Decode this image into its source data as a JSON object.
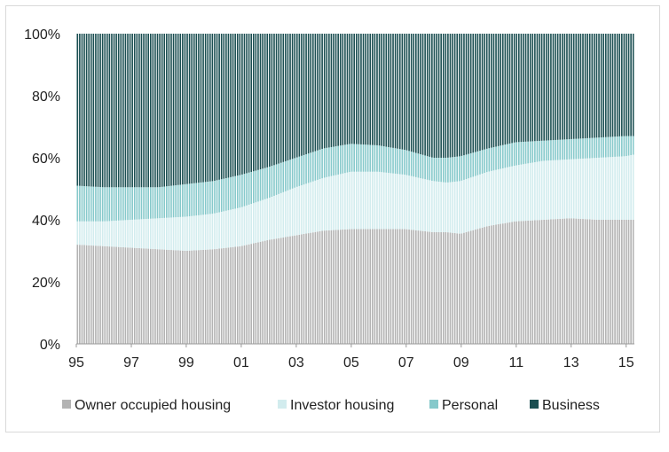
{
  "chart_data": {
    "type": "bar",
    "stacked": true,
    "percent_stacked": true,
    "x_tick_labels": [
      "95",
      "97",
      "99",
      "01",
      "03",
      "05",
      "07",
      "09",
      "11",
      "13",
      "15"
    ],
    "x_tick_values": [
      1995,
      1997,
      1999,
      2001,
      2003,
      2005,
      2007,
      2009,
      2011,
      2013,
      2015
    ],
    "x_range": [
      1995,
      2015.3
    ],
    "y_tick_labels": [
      "0%",
      "20%",
      "40%",
      "60%",
      "80%",
      "100%"
    ],
    "ylim": [
      0,
      100
    ],
    "grid": false,
    "legend_position": "bottom",
    "colors": {
      "Owner occupied housing": "#b3b3b3",
      "Investor housing": "#d2ecee",
      "Personal": "#86c9cb",
      "Business": "#1b4f52"
    },
    "x": [
      1995.0,
      1996.0,
      1997.0,
      1998.0,
      1999.0,
      2000.0,
      2001.0,
      2002.0,
      2003.0,
      2004.0,
      2005.0,
      2006.0,
      2007.0,
      2008.0,
      2008.5,
      2009.0,
      2010.0,
      2011.0,
      2012.0,
      2013.0,
      2014.0,
      2015.0,
      2015.3
    ],
    "series": [
      {
        "name": "Owner occupied housing",
        "values": [
          32,
          31.5,
          31,
          30.5,
          30,
          30.5,
          31.5,
          33.5,
          35,
          36.5,
          37,
          37,
          37,
          36,
          36,
          35.5,
          38,
          39.5,
          40,
          40.5,
          40,
          40,
          40
        ]
      },
      {
        "name": "Investor housing",
        "values": [
          7.5,
          8,
          9,
          10,
          11,
          11.5,
          12.5,
          13.5,
          15.5,
          17,
          18.5,
          18.5,
          17.5,
          16.5,
          16,
          17,
          17.5,
          18,
          19,
          19,
          20,
          20.5,
          21
        ]
      },
      {
        "name": "Personal",
        "values": [
          11.5,
          11,
          10.5,
          10,
          10.5,
          10.5,
          10.5,
          10,
          9.5,
          9.5,
          9,
          8.5,
          8,
          7.5,
          8,
          8,
          7.5,
          7.5,
          6.5,
          6.5,
          6.5,
          6.5,
          6
        ]
      },
      {
        "name": "Business",
        "values": [
          49,
          49.5,
          49.5,
          49.5,
          48.5,
          47.5,
          45.5,
          43,
          40,
          37,
          35.5,
          36,
          37.5,
          40,
          40,
          39.5,
          37,
          35,
          34.5,
          34,
          33.5,
          33,
          33
        ]
      }
    ]
  }
}
